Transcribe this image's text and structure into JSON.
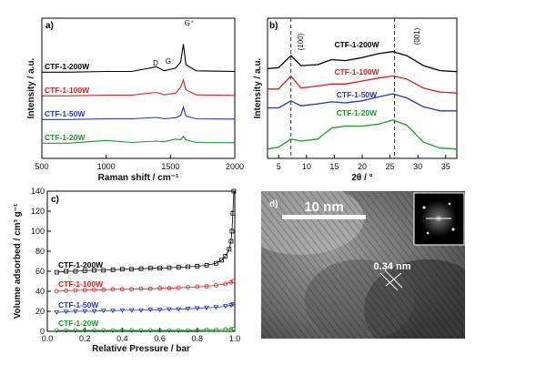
{
  "chart_data": [
    {
      "panel": "a)",
      "type": "line",
      "xlabel": "Raman shift / cm⁻¹",
      "ylabel": "Intensity / a.u.",
      "xlim": [
        500,
        2000
      ],
      "x_ticks": [
        500,
        1000,
        1500,
        2000
      ],
      "annotations": [
        "D",
        "G⁻",
        "G⁺"
      ],
      "peaks": {
        "D": 1390,
        "G-": 1540,
        "G+": 1600
      },
      "series": [
        {
          "name": "CTF-1-200W",
          "color": "#000000",
          "offset": 3.0,
          "x": [
            500,
            700,
            1000,
            1200,
            1390,
            1450,
            1540,
            1580,
            1600,
            1620,
            1700,
            2000
          ],
          "y": [
            0.05,
            0.05,
            0.1,
            0.1,
            0.45,
            0.15,
            0.35,
            0.8,
            2.1,
            0.6,
            0.15,
            0.1
          ]
        },
        {
          "name": "CTF-1-100W",
          "color": "#e41a1c",
          "offset": 2.0,
          "x": [
            500,
            700,
            1000,
            1200,
            1390,
            1450,
            1540,
            1580,
            1600,
            1620,
            1700,
            2000
          ],
          "y": [
            0.05,
            0.05,
            0.1,
            0.1,
            0.3,
            0.12,
            0.25,
            0.7,
            1.2,
            0.5,
            0.12,
            0.08
          ]
        },
        {
          "name": "CTF-1-50W",
          "color": "#2233cc",
          "offset": 1.0,
          "x": [
            500,
            700,
            1000,
            1200,
            1390,
            1450,
            1540,
            1580,
            1600,
            1620,
            1700,
            2000
          ],
          "y": [
            0.05,
            0.05,
            0.1,
            0.1,
            0.2,
            0.1,
            0.18,
            0.35,
            0.95,
            0.3,
            0.1,
            0.08
          ]
        },
        {
          "name": "CTF-1-20W",
          "color": "#1a9a2a",
          "offset": 0.0,
          "x": [
            500,
            700,
            1000,
            1200,
            1390,
            1450,
            1540,
            1580,
            1600,
            1620,
            1700,
            2000
          ],
          "y": [
            0.05,
            0.05,
            0.25,
            0.1,
            0.2,
            0.15,
            0.35,
            0.3,
            0.55,
            0.3,
            0.1,
            0.08
          ]
        }
      ]
    },
    {
      "panel": "b)",
      "type": "line",
      "xlabel": "2θ / °",
      "ylabel": "Intensity / a.u.",
      "xlim": [
        3,
        37
      ],
      "x_ticks": [
        5,
        10,
        15,
        20,
        25,
        30,
        35
      ],
      "annotations": [
        "(100)",
        "(001)"
      ],
      "dashed_lines_x": [
        7.2,
        25.8
      ],
      "series": [
        {
          "name": "CTF-1-200W",
          "color": "#000000",
          "offset": 3.0,
          "x": [
            3,
            5,
            7.2,
            9,
            12,
            14.5,
            17,
            20,
            23,
            25.5,
            28,
            31,
            34,
            37
          ],
          "y": [
            0.3,
            0.35,
            0.95,
            0.45,
            0.5,
            0.75,
            0.7,
            0.85,
            1.05,
            1.15,
            0.95,
            0.45,
            0.2,
            0.15
          ]
        },
        {
          "name": "CTF-1-100W",
          "color": "#e41a1c",
          "offset": 2.2,
          "x": [
            3,
            5,
            7.2,
            9,
            12,
            14.5,
            17,
            20,
            23,
            25.5,
            28,
            31,
            34,
            37
          ],
          "y": [
            0.3,
            0.3,
            0.95,
            0.35,
            0.45,
            0.55,
            0.55,
            0.7,
            0.85,
            0.95,
            0.8,
            0.35,
            0.15,
            0.1
          ]
        },
        {
          "name": "CTF-1-50W",
          "color": "#2233cc",
          "offset": 1.5,
          "x": [
            3,
            5,
            7.2,
            9,
            12,
            14.5,
            17,
            20,
            23,
            25.5,
            28,
            31,
            34,
            37
          ],
          "y": [
            0.25,
            0.25,
            0.6,
            0.35,
            0.45,
            0.55,
            0.5,
            0.6,
            0.8,
            0.95,
            0.75,
            0.3,
            0.1,
            0.1
          ]
        },
        {
          "name": "CTF-1-20W",
          "color": "#1a9a2a",
          "offset": 0.0,
          "x": [
            3,
            5,
            7.2,
            9,
            12,
            14.5,
            17,
            20,
            23,
            25.5,
            28,
            31,
            34,
            37
          ],
          "y": [
            0.1,
            0.2,
            0.6,
            0.5,
            0.6,
            1.15,
            1.25,
            1.25,
            1.35,
            1.55,
            1.3,
            0.45,
            0.15,
            0.1
          ]
        }
      ]
    },
    {
      "panel": "c)",
      "type": "scatter",
      "xlabel": "Relative Pressure / bar",
      "ylabel": "Volume adsorbed / cm³ g⁻¹",
      "xlim": [
        0.0,
        1.0
      ],
      "ylim": [
        0,
        140
      ],
      "x_ticks": [
        0.0,
        0.2,
        0.4,
        0.6,
        0.8,
        1.0
      ],
      "y_ticks": [
        0,
        20,
        40,
        60,
        80,
        100,
        120,
        140
      ],
      "x_tick_labels": [
        "0.0",
        "0.2",
        "0.4",
        "0.6",
        "0.8",
        "1.0"
      ],
      "series": [
        {
          "name": "CTF-1-200W",
          "color": "#000000",
          "marker": "square",
          "x": [
            0.05,
            0.1,
            0.15,
            0.2,
            0.25,
            0.3,
            0.35,
            0.4,
            0.45,
            0.5,
            0.55,
            0.6,
            0.65,
            0.7,
            0.75,
            0.8,
            0.85,
            0.9,
            0.93,
            0.95,
            0.97,
            0.98,
            0.985,
            0.99,
            0.995
          ],
          "y": [
            59,
            60,
            60,
            60.5,
            61,
            61,
            61.5,
            62,
            62,
            62.5,
            63,
            63,
            63.5,
            64,
            64.5,
            65,
            66,
            68,
            71,
            75,
            82,
            90,
            100,
            118,
            140
          ]
        },
        {
          "name": "CTF-1-100W",
          "color": "#e41a1c",
          "marker": "circle",
          "x": [
            0.05,
            0.1,
            0.15,
            0.2,
            0.25,
            0.3,
            0.35,
            0.4,
            0.45,
            0.5,
            0.55,
            0.6,
            0.65,
            0.7,
            0.75,
            0.8,
            0.85,
            0.9,
            0.95,
            0.98,
            0.99
          ],
          "y": [
            40,
            40.5,
            41,
            41,
            41.5,
            41.5,
            42,
            42,
            42,
            42.5,
            42.5,
            43,
            43,
            43.5,
            44,
            44.5,
            45,
            46,
            47.5,
            49,
            50
          ]
        },
        {
          "name": "CTF-1-50W",
          "color": "#2233cc",
          "marker": "triangle-down",
          "x": [
            0.05,
            0.1,
            0.15,
            0.2,
            0.25,
            0.3,
            0.35,
            0.4,
            0.45,
            0.5,
            0.55,
            0.6,
            0.65,
            0.7,
            0.75,
            0.8,
            0.85,
            0.9,
            0.95,
            0.98,
            0.99
          ],
          "y": [
            19,
            19.5,
            20,
            20,
            20,
            20.5,
            20.5,
            21,
            21,
            21,
            21.5,
            21.5,
            22,
            22,
            22.5,
            23,
            23.5,
            24,
            25,
            26,
            27
          ]
        },
        {
          "name": "CTF-1-20W",
          "color": "#1a9a2a",
          "marker": "circle",
          "x": [
            0.05,
            0.1,
            0.15,
            0.2,
            0.25,
            0.3,
            0.35,
            0.4,
            0.45,
            0.5,
            0.55,
            0.6,
            0.65,
            0.7,
            0.75,
            0.8,
            0.85,
            0.9,
            0.95,
            0.98,
            0.99
          ],
          "y": [
            1,
            1,
            1,
            1,
            1,
            1,
            1,
            1,
            1,
            1,
            1,
            1,
            1,
            1,
            1,
            1,
            1.5,
            1.5,
            2,
            2,
            2.5
          ]
        }
      ]
    }
  ],
  "panel_d": {
    "label": "d)",
    "scale_bar": "10 nm",
    "lattice": "0.34  nm"
  }
}
